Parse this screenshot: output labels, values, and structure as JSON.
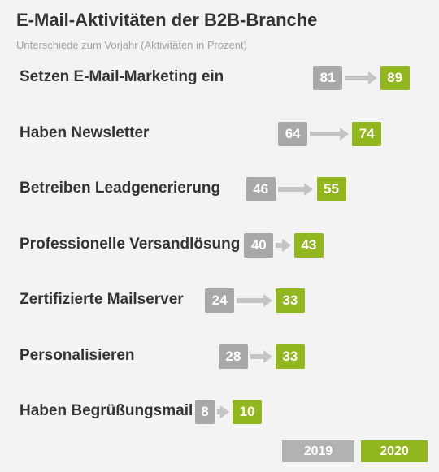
{
  "title": "E-Mail-Aktivitäten der B2B-Branche",
  "subtitle": "Unterschiede zum Vorjahr (Aktivitäten in Prozent)",
  "legend": {
    "prev": "2019",
    "curr": "2020"
  },
  "colors": {
    "prev": "#a8a8a8",
    "curr": "#92b61e",
    "arrow": "#c4c4c4",
    "background": "#f3f3f3"
  },
  "chart_data": {
    "type": "bar",
    "title": "E-Mail-Aktivitäten der B2B-Branche",
    "subtitle": "Unterschiede zum Vorjahr (Aktivitäten in Prozent)",
    "categories": [
      "Setzen E-Mail-Marketing ein",
      "Haben Newsletter",
      "Betreiben Leadgenerierung",
      "Professionelle Versandlösung",
      "Zertifizierte Mailserver",
      "Personalisieren",
      "Haben Begrüßungsmail"
    ],
    "series": [
      {
        "name": "2019",
        "values": [
          81,
          64,
          46,
          40,
          24,
          28,
          8
        ]
      },
      {
        "name": "2020",
        "values": [
          89,
          74,
          55,
          43,
          33,
          33,
          10
        ]
      }
    ],
    "legend_position": "bottom-right"
  }
}
